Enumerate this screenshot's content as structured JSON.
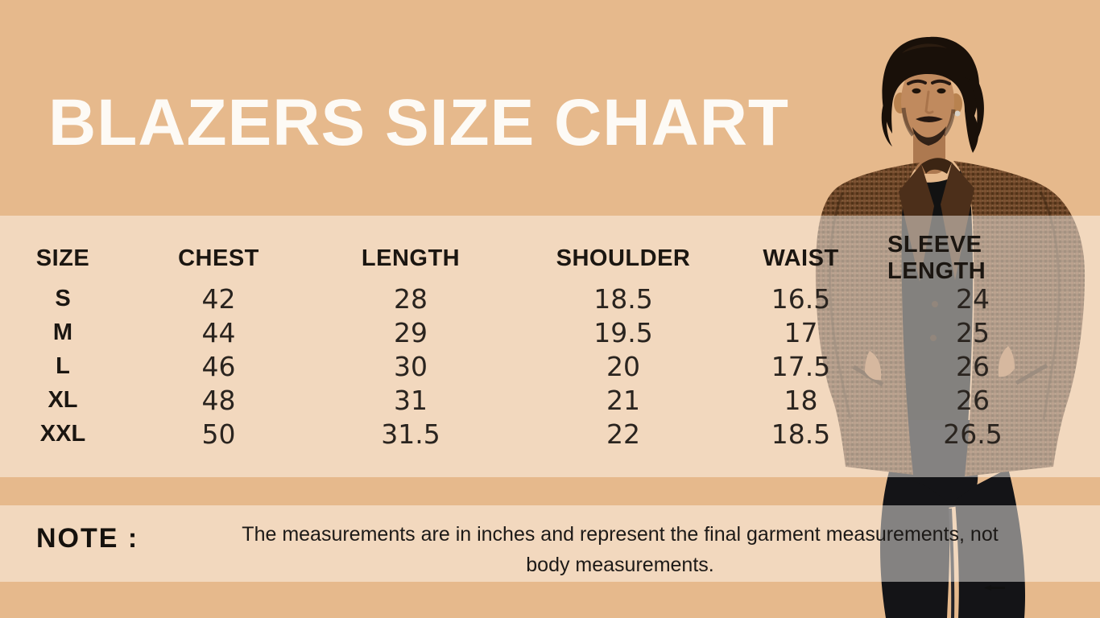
{
  "title": "BLAZERS SIZE CHART",
  "chart_data": {
    "type": "table",
    "title": "BLAZERS SIZE CHART",
    "units": "inches",
    "columns": [
      {
        "key": "size",
        "label": "SIZE"
      },
      {
        "key": "chest",
        "label": "CHEST"
      },
      {
        "key": "length",
        "label": "LENGTH"
      },
      {
        "key": "shoulder",
        "label": "SHOULDER"
      },
      {
        "key": "waist",
        "label": "WAIST"
      },
      {
        "key": "sleeve",
        "label": "SLEEVE LENGTH"
      }
    ],
    "rows": [
      {
        "size": "S",
        "chest": "42",
        "length": "28",
        "shoulder": "18.5",
        "waist": "16.5",
        "sleeve": "24"
      },
      {
        "size": "M",
        "chest": "44",
        "length": "29",
        "shoulder": "19.5",
        "waist": "17",
        "sleeve": "25"
      },
      {
        "size": "L",
        "chest": "46",
        "length": "30",
        "shoulder": "20",
        "waist": "17.5",
        "sleeve": "26"
      },
      {
        "size": "XL",
        "chest": "48",
        "length": "31",
        "shoulder": "21",
        "waist": "18",
        "sleeve": "26"
      },
      {
        "size": "XXL",
        "chest": "50",
        "length": "31.5",
        "shoulder": "22",
        "waist": "18.5",
        "sleeve": "26.5"
      }
    ]
  },
  "note": {
    "label": "NOTE :",
    "text": "The measurements are in inches and represent the final garment measurements, not body measurements.",
    "lines": [
      "The measurements are in inches and represent the final garment measurements, not",
      "body measurements."
    ]
  },
  "figure": {
    "description": "Man with dark curly hair wearing a brown houndstooth blazer over a black t-shirt, hands in pockets"
  },
  "colors": {
    "background": "#e6b98c",
    "band_overlay": "rgba(255,251,244,0.48)",
    "title_text": "#fdfaf5",
    "body_text": "#1d1916",
    "blazer": "#6a4427",
    "hair": "#191009",
    "skin": "#c08a5e",
    "pants": "#141417"
  }
}
